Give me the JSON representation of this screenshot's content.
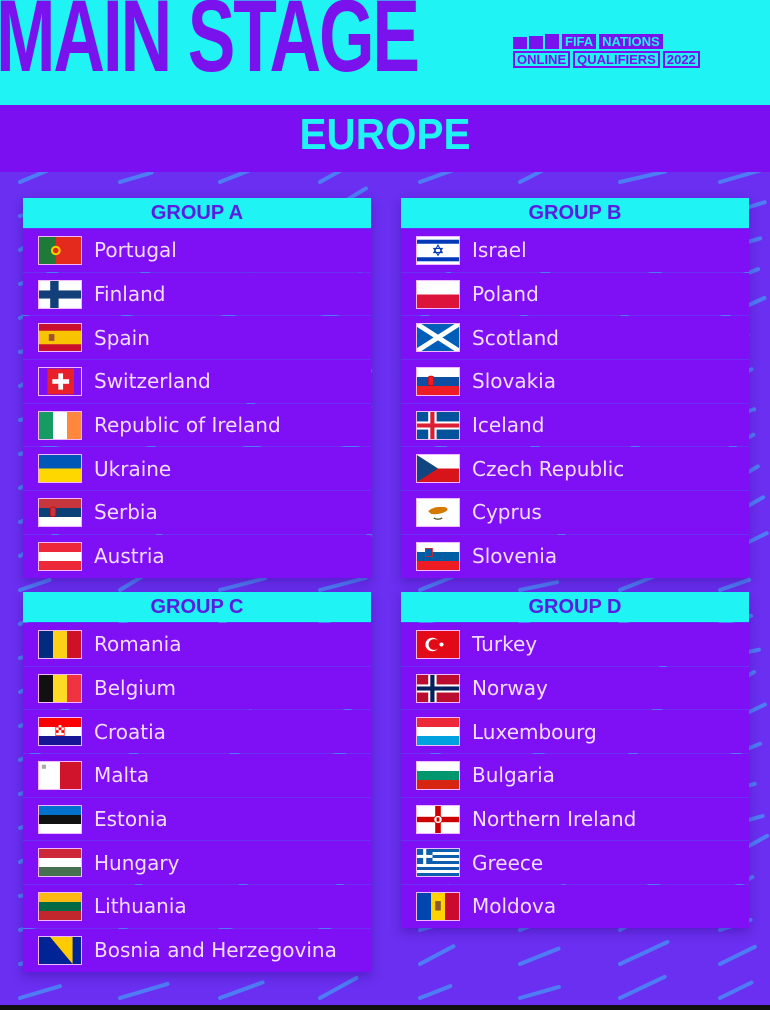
{
  "header": {
    "title": "MAIN STAGE",
    "logo": {
      "line1": [
        "FIFA",
        "NATIONS"
      ],
      "line2": [
        "ONLINE",
        "QUALIFIERS",
        "2022"
      ]
    },
    "region": "EUROPE"
  },
  "colors": {
    "cyan": "#1ff3f3",
    "purple": "#7a12ee",
    "row": "#7f0ff5",
    "background": "#6a2ff0",
    "text": "#f3dcff",
    "dashes": "#4a8af5"
  },
  "groups": [
    {
      "title": "GROUP A",
      "teams": [
        {
          "name": "Portugal",
          "flag": "portugal"
        },
        {
          "name": "Finland",
          "flag": "finland"
        },
        {
          "name": "Spain",
          "flag": "spain"
        },
        {
          "name": "Switzerland",
          "flag": "switzerland"
        },
        {
          "name": "Republic of Ireland",
          "flag": "ireland"
        },
        {
          "name": "Ukraine",
          "flag": "ukraine"
        },
        {
          "name": "Serbia",
          "flag": "serbia"
        },
        {
          "name": "Austria",
          "flag": "austria"
        }
      ]
    },
    {
      "title": "GROUP B",
      "teams": [
        {
          "name": "Israel",
          "flag": "israel"
        },
        {
          "name": "Poland",
          "flag": "poland"
        },
        {
          "name": "Scotland",
          "flag": "scotland"
        },
        {
          "name": "Slovakia",
          "flag": "slovakia"
        },
        {
          "name": "Iceland",
          "flag": "iceland"
        },
        {
          "name": "Czech Republic",
          "flag": "czech"
        },
        {
          "name": "Cyprus",
          "flag": "cyprus"
        },
        {
          "name": "Slovenia",
          "flag": "slovenia"
        }
      ]
    },
    {
      "title": "GROUP C",
      "teams": [
        {
          "name": "Romania",
          "flag": "romania"
        },
        {
          "name": "Belgium",
          "flag": "belgium"
        },
        {
          "name": "Croatia",
          "flag": "croatia"
        },
        {
          "name": "Malta",
          "flag": "malta"
        },
        {
          "name": "Estonia",
          "flag": "estonia"
        },
        {
          "name": "Hungary",
          "flag": "hungary"
        },
        {
          "name": "Lithuania",
          "flag": "lithuania"
        },
        {
          "name": "Bosnia and Herzegovina",
          "flag": "bosnia"
        }
      ]
    },
    {
      "title": "GROUP D",
      "teams": [
        {
          "name": "Turkey",
          "flag": "turkey"
        },
        {
          "name": "Norway",
          "flag": "norway"
        },
        {
          "name": "Luxembourg",
          "flag": "luxembourg"
        },
        {
          "name": "Bulgaria",
          "flag": "bulgaria"
        },
        {
          "name": "Northern Ireland",
          "flag": "northern-ireland"
        },
        {
          "name": "Greece",
          "flag": "greece"
        },
        {
          "name": "Moldova",
          "flag": "moldova"
        }
      ]
    }
  ]
}
